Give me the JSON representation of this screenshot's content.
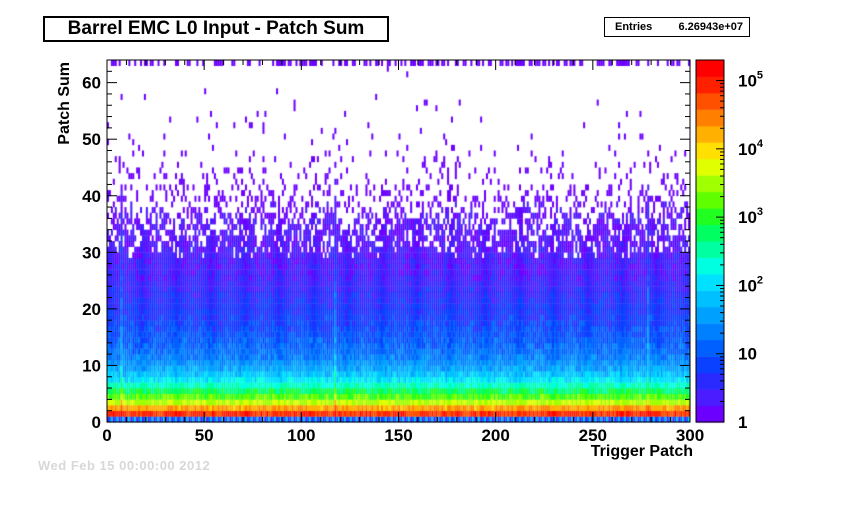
{
  "header": {
    "title": "Barrel EMC L0 Input - Patch Sum",
    "stats_label": "Entries",
    "stats_value": "6.26943e+07"
  },
  "footer": {
    "faded_stamp": "Wed Feb 15 00:00:00 2012"
  },
  "chart_data": {
    "type": "heatmap",
    "title": "Barrel EMC L0 Input - Patch Sum",
    "xlabel": "Trigger Patch",
    "ylabel": "Patch Sum",
    "xlim": [
      0,
      300
    ],
    "ylim": [
      0,
      64
    ],
    "x_ticks": [
      0,
      50,
      100,
      150,
      200,
      250,
      300
    ],
    "y_ticks": [
      0,
      10,
      20,
      30,
      40,
      50,
      60
    ],
    "z_scale": "log",
    "z_range": [
      1,
      200000
    ],
    "colorbar_ticks": [
      {
        "value": 1,
        "label": "1"
      },
      {
        "value": 10,
        "label": "10"
      },
      {
        "value": 100,
        "label": "10",
        "exp": "2"
      },
      {
        "value": 1000,
        "label": "10",
        "exp": "3"
      },
      {
        "value": 10000,
        "label": "10",
        "exp": "4"
      },
      {
        "value": 100000,
        "label": "10",
        "exp": "5"
      }
    ],
    "colormap": [
      "#6b00ff",
      "#4a1cff",
      "#2a2aff",
      "#0a40ff",
      "#0060ff",
      "#0080ff",
      "#00a0ff",
      "#00c0ff",
      "#00e0ff",
      "#00ffe0",
      "#00ffa0",
      "#00ff60",
      "#20ff20",
      "#60ff00",
      "#a0ff00",
      "#e0ff00",
      "#ffe000",
      "#ffb000",
      "#ff8000",
      "#ff5000",
      "#ff2000",
      "#ff0000"
    ],
    "rows": [
      {
        "y": 0,
        "counts": "alternating"
      },
      {
        "y": 1,
        "counts": 80000
      },
      {
        "y": 2,
        "counts": 20000
      },
      {
        "y": 3,
        "counts": 4000
      },
      {
        "y": 4,
        "counts": 1500
      },
      {
        "y": 5,
        "counts": 600
      },
      {
        "y": 6,
        "counts": 250
      },
      {
        "y": 7,
        "counts": 120
      },
      {
        "y": 8,
        "counts": 70
      },
      {
        "y": 9,
        "counts": 40
      },
      {
        "y": 10,
        "counts": 28
      },
      {
        "y": 11,
        "counts": 20
      },
      {
        "y": 12,
        "counts": 15
      },
      {
        "y": 14,
        "counts": 11
      },
      {
        "y": 16,
        "counts": 8
      },
      {
        "y": 18,
        "counts": 6
      },
      {
        "y": 20,
        "counts": 5
      },
      {
        "y": 22,
        "counts": 4
      },
      {
        "y": 24,
        "counts": 3
      },
      {
        "y": 27,
        "counts": 2
      },
      {
        "y": 30,
        "counts": 1.5
      },
      {
        "y": 35,
        "counts": 1
      }
    ],
    "notable_columns": [
      7,
      117,
      278
    ],
    "overflow_row_y": 63
  }
}
